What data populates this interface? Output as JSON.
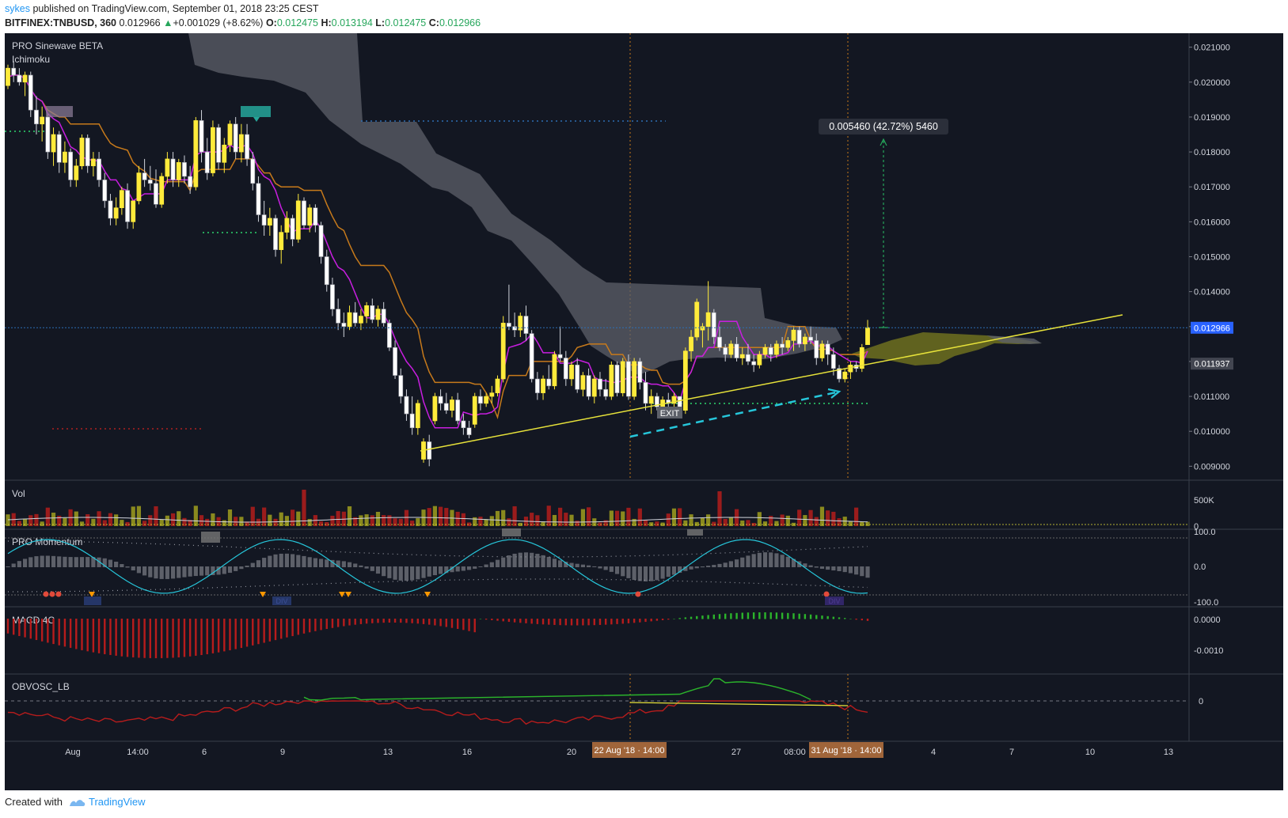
{
  "header": {
    "user": "sykes",
    "published_text": "published on TradingView.com, September 01, 2018 23:25 CEST",
    "symbol": "BITFINEX:TNBUSD, 360",
    "last": "0.012966",
    "change_arrow": "▲",
    "change": "+0.001029 (+8.62%)",
    "o_label": "O:",
    "o_val": "0.012475",
    "h_label": "H:",
    "h_val": "0.013194",
    "l_label": "L:",
    "l_val": "0.012475",
    "c_label": "C:",
    "c_val": "0.012966"
  },
  "footer": {
    "created_with": "Created with",
    "brand": "TradingView"
  },
  "chart_data": {
    "type": "candlestick",
    "indicators": [
      "PRO Sinewave BETA",
      "Ichimoku"
    ],
    "price_axis": {
      "ticks": [
        "0.021000",
        "0.020000",
        "0.019000",
        "0.018000",
        "0.017000",
        "0.016000",
        "0.015000",
        "0.014000",
        "0.013000",
        "0.012000",
        "0.011000",
        "0.010000",
        "0.009000"
      ],
      "ylim": [
        0.0086,
        0.0214
      ]
    },
    "last_price_label": "0.012966",
    "support_label": "0.011937",
    "measure_label": "0.005460 (42.72%) 5460",
    "exit_label": "EXIT",
    "time_axis": {
      "labels": [
        "Aug",
        "14:00",
        "6",
        "9",
        "13",
        "16",
        "20",
        "27",
        "08:00",
        "4",
        "7",
        "10",
        "13"
      ],
      "highlight_labels": [
        "22 Aug '18 · 14:00",
        "31 Aug '18 · 14:00"
      ]
    },
    "candles": [
      [
        0.0199,
        0.0205,
        0.0198,
        0.0204
      ],
      [
        0.0204,
        0.0206,
        0.02,
        0.0202
      ],
      [
        0.0202,
        0.0204,
        0.0199,
        0.02
      ],
      [
        0.02,
        0.0203,
        0.0196,
        0.0202
      ],
      [
        0.0202,
        0.0203,
        0.019,
        0.0192
      ],
      [
        0.0192,
        0.0196,
        0.0185,
        0.0188
      ],
      [
        0.0188,
        0.0193,
        0.0183,
        0.019
      ],
      [
        0.019,
        0.0191,
        0.0178,
        0.018
      ],
      [
        0.018,
        0.0187,
        0.0176,
        0.0185
      ],
      [
        0.0185,
        0.0186,
        0.0174,
        0.0177
      ],
      [
        0.0177,
        0.0183,
        0.0174,
        0.018
      ],
      [
        0.018,
        0.0181,
        0.017,
        0.0172
      ],
      [
        0.0172,
        0.0178,
        0.017,
        0.0176
      ],
      [
        0.0176,
        0.0185,
        0.0175,
        0.0184
      ],
      [
        0.0184,
        0.0185,
        0.0174,
        0.0176
      ],
      [
        0.0176,
        0.018,
        0.0173,
        0.0178
      ],
      [
        0.0178,
        0.018,
        0.017,
        0.0172
      ],
      [
        0.0172,
        0.0174,
        0.0164,
        0.0166
      ],
      [
        0.0166,
        0.0168,
        0.0159,
        0.0161
      ],
      [
        0.0161,
        0.0167,
        0.0159,
        0.0164
      ],
      [
        0.0164,
        0.017,
        0.0162,
        0.0169
      ],
      [
        0.0169,
        0.0171,
        0.0158,
        0.016
      ],
      [
        0.016,
        0.0166,
        0.0158,
        0.0166
      ],
      [
        0.0166,
        0.0176,
        0.0165,
        0.0174
      ],
      [
        0.0174,
        0.0178,
        0.017,
        0.0172
      ],
      [
        0.0172,
        0.0176,
        0.0169,
        0.0171
      ],
      [
        0.0171,
        0.0175,
        0.0164,
        0.0165
      ],
      [
        0.0165,
        0.0174,
        0.0164,
        0.0173
      ],
      [
        0.0173,
        0.018,
        0.0171,
        0.0178
      ],
      [
        0.0178,
        0.018,
        0.017,
        0.0172
      ],
      [
        0.0172,
        0.0178,
        0.017,
        0.0177
      ],
      [
        0.0177,
        0.0179,
        0.0171,
        0.0173
      ],
      [
        0.0173,
        0.0176,
        0.0168,
        0.017
      ],
      [
        0.017,
        0.019,
        0.0169,
        0.0189
      ],
      [
        0.0189,
        0.0192,
        0.0177,
        0.018
      ],
      [
        0.018,
        0.0184,
        0.0172,
        0.0174
      ],
      [
        0.0174,
        0.0189,
        0.0173,
        0.0187
      ],
      [
        0.0187,
        0.0188,
        0.0175,
        0.0177
      ],
      [
        0.0177,
        0.0184,
        0.0174,
        0.0182
      ],
      [
        0.0182,
        0.0189,
        0.018,
        0.0188
      ],
      [
        0.0188,
        0.019,
        0.0178,
        0.018
      ],
      [
        0.018,
        0.0188,
        0.0177,
        0.0185
      ],
      [
        0.0185,
        0.0188,
        0.0176,
        0.0178
      ],
      [
        0.0178,
        0.018,
        0.0169,
        0.0171
      ],
      [
        0.0171,
        0.0173,
        0.016,
        0.0162
      ],
      [
        0.0162,
        0.0166,
        0.0156,
        0.0159
      ],
      [
        0.0159,
        0.0164,
        0.0156,
        0.0161
      ],
      [
        0.0161,
        0.0162,
        0.015,
        0.0152
      ],
      [
        0.0152,
        0.0159,
        0.0148,
        0.0157
      ],
      [
        0.0157,
        0.0163,
        0.0155,
        0.0161
      ],
      [
        0.0161,
        0.0162,
        0.0153,
        0.0155
      ],
      [
        0.0155,
        0.0168,
        0.0154,
        0.0166
      ],
      [
        0.0166,
        0.0167,
        0.0158,
        0.0159
      ],
      [
        0.0159,
        0.0165,
        0.0157,
        0.0164
      ],
      [
        0.0164,
        0.0165,
        0.0157,
        0.0159
      ],
      [
        0.0159,
        0.016,
        0.0148,
        0.015
      ],
      [
        0.015,
        0.0152,
        0.014,
        0.0142
      ],
      [
        0.0142,
        0.0144,
        0.0133,
        0.0135
      ],
      [
        0.0135,
        0.0138,
        0.0129,
        0.0131
      ],
      [
        0.0131,
        0.0134,
        0.0127,
        0.013
      ],
      [
        0.013,
        0.0136,
        0.0129,
        0.0134
      ],
      [
        0.0134,
        0.0137,
        0.013,
        0.0131
      ],
      [
        0.0131,
        0.0135,
        0.0129,
        0.0133
      ],
      [
        0.0133,
        0.0137,
        0.0131,
        0.0136
      ],
      [
        0.0136,
        0.0138,
        0.0131,
        0.0132
      ],
      [
        0.0132,
        0.0136,
        0.013,
        0.0135
      ],
      [
        0.0135,
        0.0137,
        0.013,
        0.0131
      ],
      [
        0.0131,
        0.0132,
        0.0123,
        0.0124
      ],
      [
        0.0124,
        0.0126,
        0.0115,
        0.0116
      ],
      [
        0.0116,
        0.0118,
        0.0108,
        0.011
      ],
      [
        0.011,
        0.0112,
        0.0103,
        0.0105
      ],
      [
        0.0105,
        0.011,
        0.0099,
        0.0101
      ],
      [
        0.0101,
        0.0109,
        0.0099,
        0.0108
      ],
      [
        0.0092,
        0.0098,
        0.0091,
        0.0097
      ],
      [
        0.0097,
        0.0099,
        0.009,
        0.0092
      ],
      [
        0.0103,
        0.0111,
        0.0102,
        0.011
      ],
      [
        0.011,
        0.0112,
        0.0106,
        0.0108
      ],
      [
        0.0108,
        0.0111,
        0.0105,
        0.0106
      ],
      [
        0.0106,
        0.011,
        0.0104,
        0.0109
      ],
      [
        0.0109,
        0.0111,
        0.0102,
        0.0103
      ],
      [
        0.0103,
        0.0105,
        0.0099,
        0.0101
      ],
      [
        0.0101,
        0.0103,
        0.0098,
        0.0099
      ],
      [
        0.0102,
        0.0111,
        0.0101,
        0.011
      ],
      [
        0.011,
        0.0112,
        0.0106,
        0.0108
      ],
      [
        0.0108,
        0.0111,
        0.0107,
        0.011
      ],
      [
        0.011,
        0.0113,
        0.0108,
        0.0111
      ],
      [
        0.0111,
        0.0116,
        0.011,
        0.0115
      ],
      [
        0.0115,
        0.0133,
        0.0114,
        0.0131
      ],
      [
        0.0131,
        0.0142,
        0.0129,
        0.013
      ],
      [
        0.013,
        0.0134,
        0.0127,
        0.0129
      ],
      [
        0.0129,
        0.0134,
        0.0127,
        0.0133
      ],
      [
        0.0133,
        0.0136,
        0.0126,
        0.0128
      ],
      [
        0.0128,
        0.0129,
        0.0114,
        0.0115
      ],
      [
        0.0115,
        0.0117,
        0.0109,
        0.0111
      ],
      [
        0.0111,
        0.0116,
        0.0109,
        0.0115
      ],
      [
        0.0115,
        0.0119,
        0.0112,
        0.0113
      ],
      [
        0.0113,
        0.0123,
        0.0112,
        0.0122
      ],
      [
        0.0122,
        0.013,
        0.012,
        0.0121
      ],
      [
        0.0121,
        0.0123,
        0.0113,
        0.0115
      ],
      [
        0.0115,
        0.012,
        0.0113,
        0.0119
      ],
      [
        0.0119,
        0.0121,
        0.0111,
        0.0112
      ],
      [
        0.0112,
        0.0117,
        0.011,
        0.0116
      ],
      [
        0.0116,
        0.0118,
        0.0109,
        0.011
      ],
      [
        0.011,
        0.0116,
        0.0108,
        0.0115
      ],
      [
        0.0115,
        0.0117,
        0.011,
        0.0112
      ],
      [
        0.0112,
        0.0115,
        0.0109,
        0.011
      ],
      [
        0.011,
        0.012,
        0.0109,
        0.0119
      ],
      [
        0.0119,
        0.012,
        0.011,
        0.0111
      ],
      [
        0.0111,
        0.0121,
        0.011,
        0.012
      ],
      [
        0.012,
        0.0122,
        0.0109,
        0.011
      ],
      [
        0.011,
        0.0121,
        0.0109,
        0.012
      ],
      [
        0.012,
        0.0121,
        0.0112,
        0.0114
      ],
      [
        0.0114,
        0.0117,
        0.0106,
        0.0108
      ],
      [
        0.0108,
        0.0112,
        0.0105,
        0.011
      ],
      [
        0.011,
        0.0111,
        0.0106,
        0.0107
      ],
      [
        0.0107,
        0.011,
        0.0106,
        0.0109
      ],
      [
        0.0109,
        0.0111,
        0.0107,
        0.0108
      ],
      [
        0.0108,
        0.0111,
        0.0105,
        0.011
      ],
      [
        0.011,
        0.011,
        0.0105,
        0.0106
      ],
      [
        0.0106,
        0.0124,
        0.0105,
        0.0123
      ],
      [
        0.0123,
        0.0129,
        0.012,
        0.0127
      ],
      [
        0.0127,
        0.0138,
        0.0126,
        0.0137
      ],
      [
        0.0129,
        0.0131,
        0.0124,
        0.013
      ],
      [
        0.013,
        0.0143,
        0.0126,
        0.0134
      ],
      [
        0.0134,
        0.0135,
        0.0125,
        0.0127
      ],
      [
        0.0127,
        0.013,
        0.0123,
        0.0124
      ],
      [
        0.0124,
        0.0125,
        0.012,
        0.0122
      ],
      [
        0.0122,
        0.0126,
        0.0121,
        0.0125
      ],
      [
        0.0125,
        0.0127,
        0.012,
        0.0121
      ],
      [
        0.0121,
        0.0124,
        0.0119,
        0.0122
      ],
      [
        0.0122,
        0.0125,
        0.0119,
        0.012
      ],
      [
        0.012,
        0.0122,
        0.0117,
        0.0119
      ],
      [
        0.0119,
        0.0123,
        0.0118,
        0.0122
      ],
      [
        0.0122,
        0.0125,
        0.0121,
        0.0124
      ],
      [
        0.0124,
        0.0125,
        0.012,
        0.0122
      ],
      [
        0.0122,
        0.0126,
        0.0121,
        0.0125
      ],
      [
        0.0125,
        0.0127,
        0.0122,
        0.0124
      ],
      [
        0.0124,
        0.0127,
        0.0123,
        0.0126
      ],
      [
        0.0126,
        0.013,
        0.0123,
        0.0129
      ],
      [
        0.0129,
        0.013,
        0.0124,
        0.0125
      ],
      [
        0.0125,
        0.0128,
        0.0123,
        0.0127
      ],
      [
        0.0127,
        0.013,
        0.0125,
        0.0126
      ],
      [
        0.0126,
        0.0128,
        0.0119,
        0.0121
      ],
      [
        0.0121,
        0.0126,
        0.012,
        0.0125
      ],
      [
        0.0125,
        0.0126,
        0.0119,
        0.0122
      ],
      [
        0.0122,
        0.0124,
        0.0116,
        0.0118
      ],
      [
        0.0118,
        0.0119,
        0.0114,
        0.0115
      ],
      [
        0.0115,
        0.0118,
        0.0114,
        0.0117
      ],
      [
        0.0117,
        0.012,
        0.0115,
        0.0119
      ],
      [
        0.0119,
        0.012,
        0.0117,
        0.0118
      ],
      [
        0.0118,
        0.0125,
        0.0117,
        0.0124
      ],
      [
        0.01248,
        0.01319,
        0.01248,
        0.01297
      ]
    ],
    "indicator_panes": [
      {
        "name": "Vol",
        "ticks": [
          "500K",
          "0"
        ]
      },
      {
        "name": "PRO Momentum",
        "ticks": [
          "100.0",
          "0.0",
          "-100.0"
        ],
        "labels": [
          "DIV",
          "DIV"
        ]
      },
      {
        "name": "MACD 4C",
        "ticks": [
          "0.0000",
          "-0.0010"
        ]
      },
      {
        "name": "OBVOSC_LB",
        "ticks": [
          "0"
        ]
      }
    ],
    "colors": {
      "background": "#131722",
      "up": "#ffeb3b",
      "down": "#ffffff",
      "tenkan": "#c81ee0",
      "kijun": "#c77a1b",
      "trendline": "#e7e23a",
      "arrow": "#26c6da"
    }
  }
}
